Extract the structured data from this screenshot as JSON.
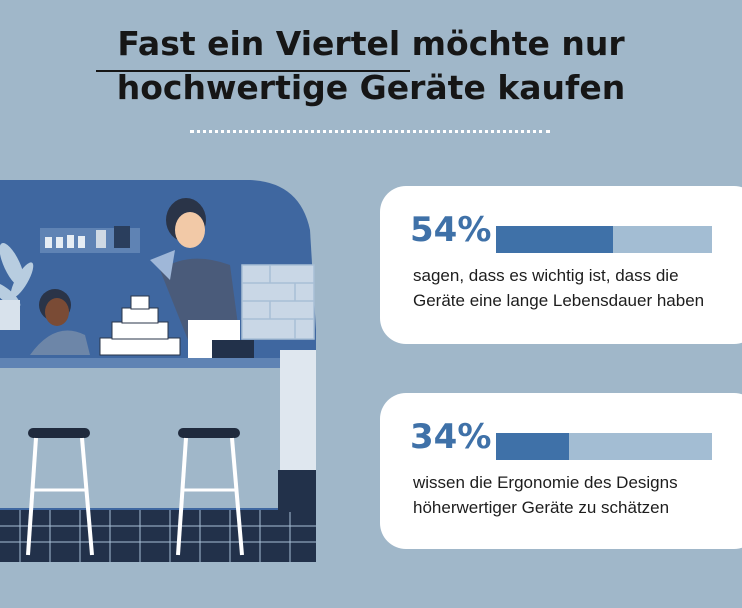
{
  "headline": {
    "line1": "Fast ein Viertel möchte nur",
    "line2": "hochwertige Geräte kaufen"
  },
  "stats": [
    {
      "percent_label": "54%",
      "value": 54,
      "text": "sagen, dass es wichtig ist, dass die Geräte eine lange Lebensdauer haben"
    },
    {
      "percent_label": "34%",
      "value": 34,
      "text": "wissen die Ergonomie des Designs höherwertiger Geräte zu schätzen"
    }
  ],
  "colors": {
    "background": "#a0b7c9",
    "accent": "#3f71a8",
    "bar_track": "#a3bdd3",
    "card": "#ffffff"
  },
  "illustration": {
    "subject": "kitchen-scene-illustration"
  }
}
